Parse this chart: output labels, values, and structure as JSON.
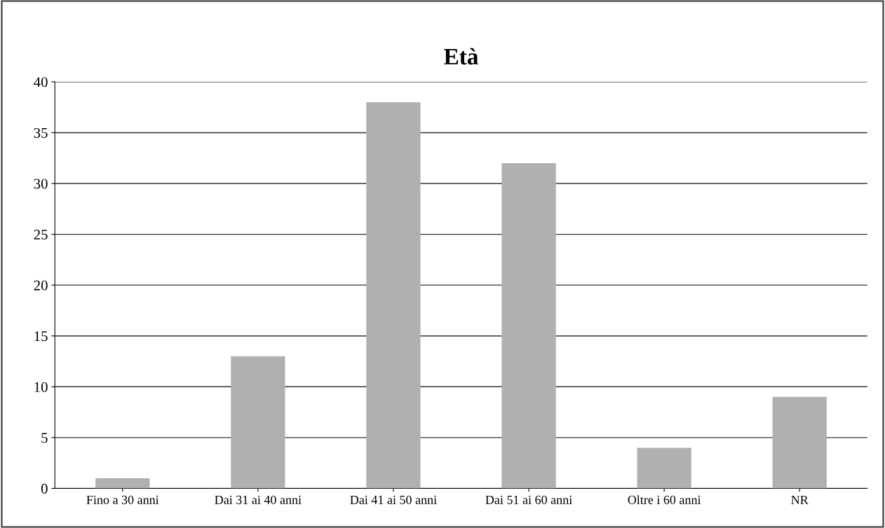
{
  "chart_data": {
    "type": "bar",
    "title": "Età",
    "categories": [
      "Fino a 30 anni",
      "Dai 31 ai 40 anni",
      "Dai 41 ai 50 anni",
      "Dai 51 ai 60 anni",
      "Oltre i 60 anni",
      "NR"
    ],
    "values": [
      1,
      13,
      38,
      32,
      4,
      9
    ],
    "color": "#b0b0b0",
    "ylim": [
      0,
      40
    ],
    "yticks": [
      0,
      5,
      10,
      15,
      20,
      25,
      30,
      35,
      40
    ],
    "grid": "y"
  }
}
